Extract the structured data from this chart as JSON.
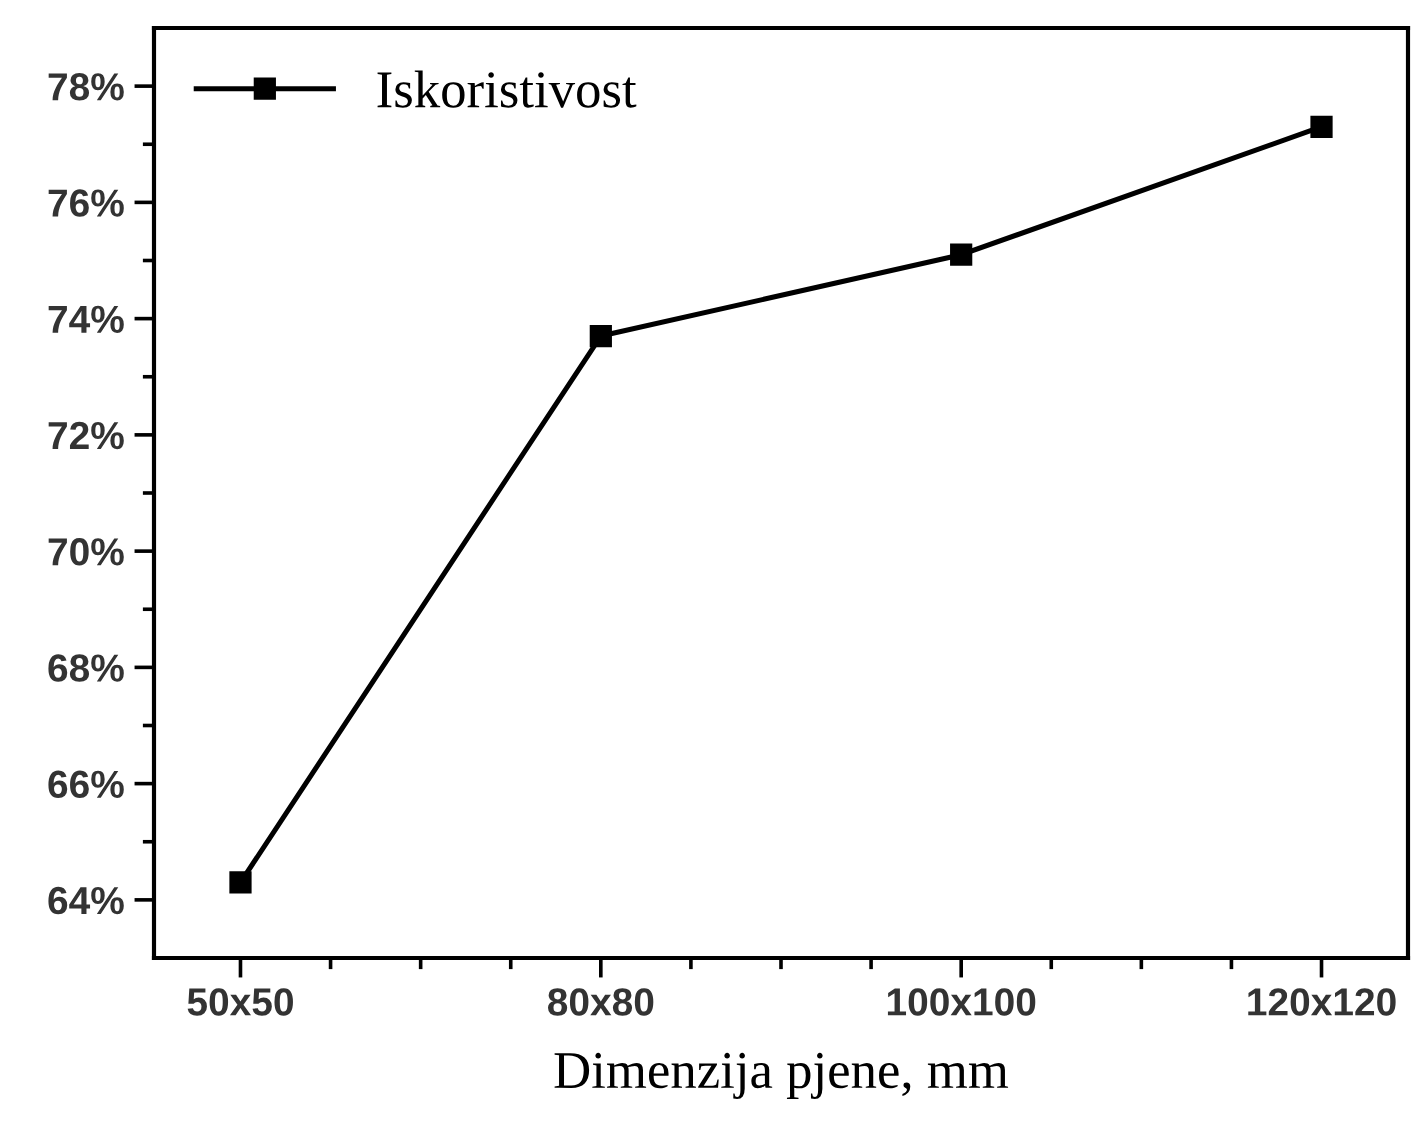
{
  "chart_data": {
    "type": "line",
    "xlabel": "Dimenzija pjene, mm",
    "categories": [
      "50x50",
      "80x80",
      "100x100",
      "120x120"
    ],
    "series": [
      {
        "name": "Iskoristivost",
        "color": "#000000",
        "values": [
          64.3,
          73.7,
          75.1,
          77.3
        ]
      }
    ],
    "ylim": [
      63,
      79
    ],
    "yticks": [
      {
        "value": 64,
        "label": "64%"
      },
      {
        "value": 65,
        "label": null
      },
      {
        "value": 66,
        "label": "66%"
      },
      {
        "value": 67,
        "label": null
      },
      {
        "value": 68,
        "label": "68%"
      },
      {
        "value": 69,
        "label": null
      },
      {
        "value": 70,
        "label": "70%"
      },
      {
        "value": 71,
        "label": null
      },
      {
        "value": 72,
        "label": "72%"
      },
      {
        "value": 73,
        "label": null
      },
      {
        "value": 74,
        "label": "74%"
      },
      {
        "value": 75,
        "label": null
      },
      {
        "value": 76,
        "label": "76%"
      },
      {
        "value": 77,
        "label": null
      },
      {
        "value": 78,
        "label": "78%"
      }
    ],
    "marker": "square",
    "line_style": "solid",
    "legend": "top left",
    "grid": false
  }
}
